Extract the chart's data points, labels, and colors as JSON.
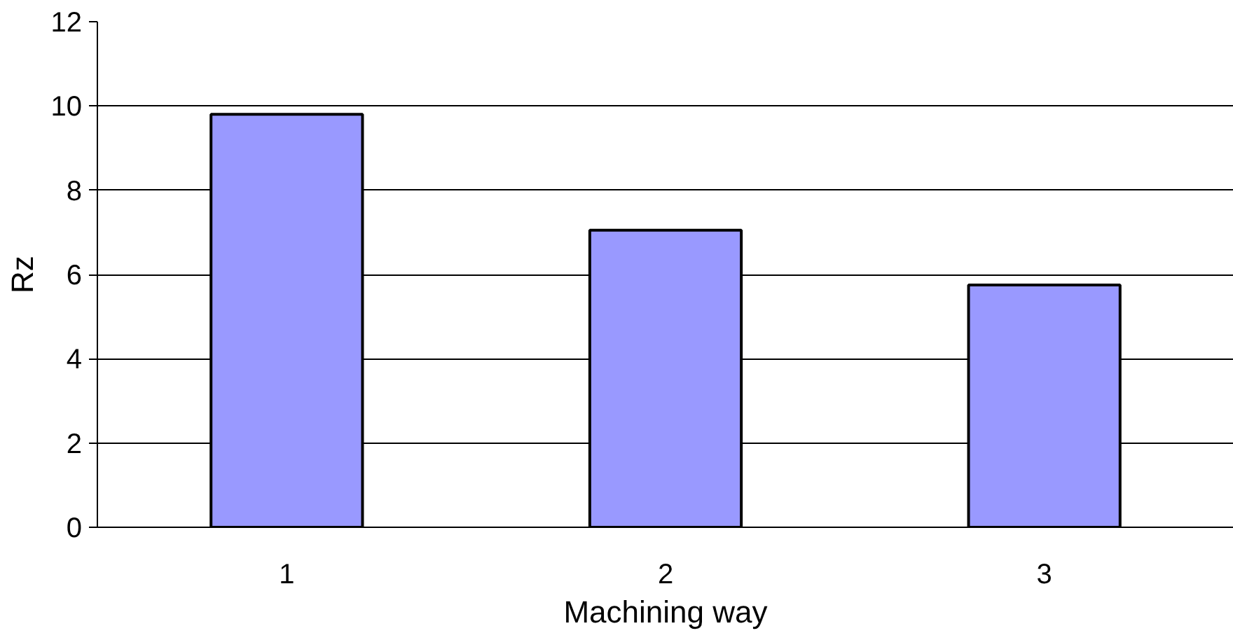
{
  "chart_data": {
    "type": "bar",
    "xlabel": "Machining way",
    "ylabel": "Rz",
    "categories": [
      "1",
      "2",
      "3"
    ],
    "values": [
      9.8,
      7.05,
      5.75
    ],
    "color": "#9999ff",
    "ylim": [
      0,
      12
    ],
    "yticks": [
      0,
      2,
      4,
      6,
      8,
      10,
      12
    ],
    "grid": "y"
  }
}
